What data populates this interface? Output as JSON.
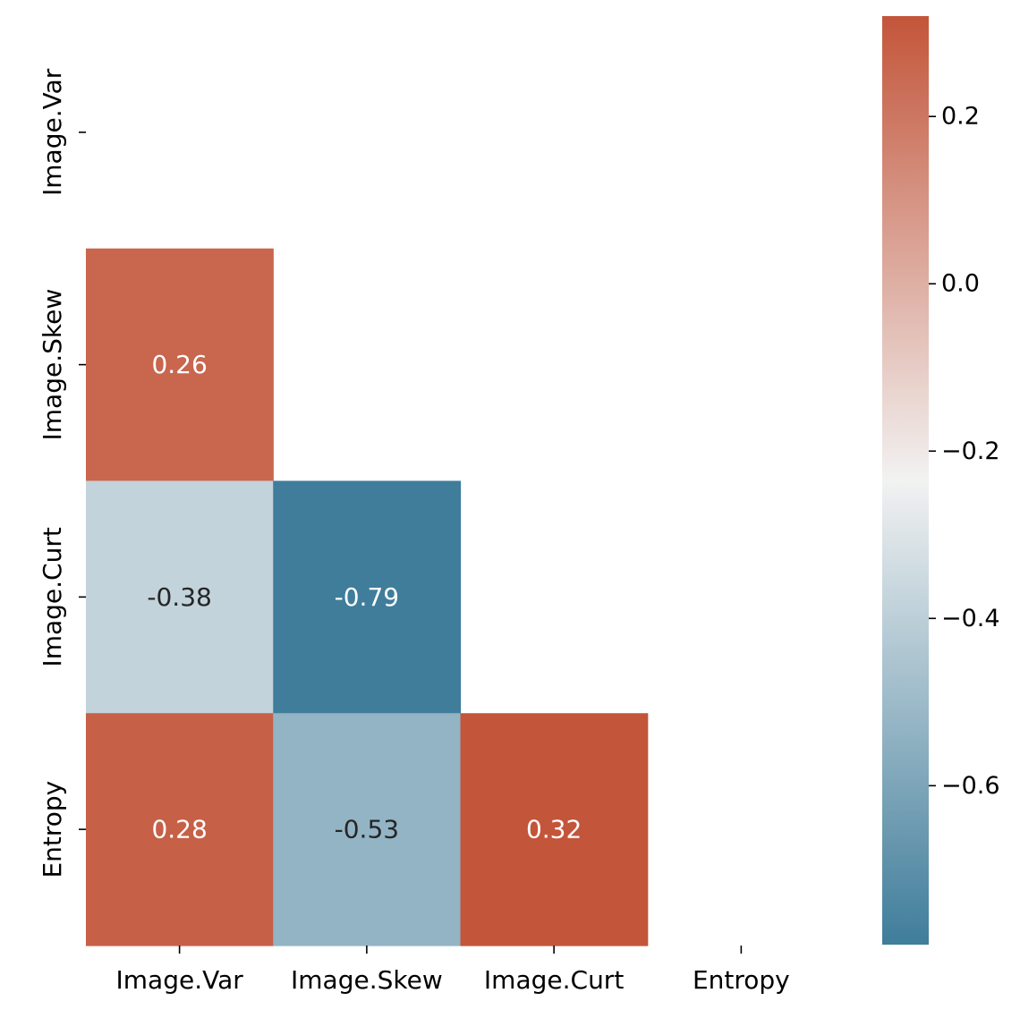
{
  "chart_data": {
    "type": "heatmap",
    "title": "",
    "xlabel": "",
    "ylabel": "",
    "x_labels": [
      "Image.Var",
      "Image.Skew",
      "Image.Curt",
      "Entropy"
    ],
    "y_labels": [
      "Image.Var",
      "Image.Skew",
      "Image.Curt",
      "Entropy"
    ],
    "mask": "upper-triangle-including-diagonal",
    "cells": [
      {
        "row": 1,
        "col": 0,
        "value": 0.26,
        "label": "0.26"
      },
      {
        "row": 2,
        "col": 0,
        "value": -0.38,
        "label": "-0.38"
      },
      {
        "row": 2,
        "col": 1,
        "value": -0.79,
        "label": "-0.79"
      },
      {
        "row": 3,
        "col": 0,
        "value": 0.28,
        "label": "0.28"
      },
      {
        "row": 3,
        "col": 1,
        "value": -0.53,
        "label": "-0.53"
      },
      {
        "row": 3,
        "col": 2,
        "value": 0.32,
        "label": "0.32"
      }
    ],
    "colorbar": {
      "vmin": -0.79,
      "vmax": 0.32,
      "center": -0.235,
      "ticks": [
        {
          "value": 0.2,
          "label": "0.2"
        },
        {
          "value": 0.0,
          "label": "0.0"
        },
        {
          "value": -0.2,
          "label": "−0.2"
        },
        {
          "value": -0.4,
          "label": "−0.4"
        },
        {
          "value": -0.6,
          "label": "−0.6"
        }
      ],
      "palette": "diverging blue-white-red",
      "colors": {
        "low": "#3f7d9b",
        "mid": "#f2f2f2",
        "high": "#c3553a"
      }
    },
    "annotation_colors": {
      "dark_text": "#262626",
      "light_text": "#ffffff"
    }
  }
}
